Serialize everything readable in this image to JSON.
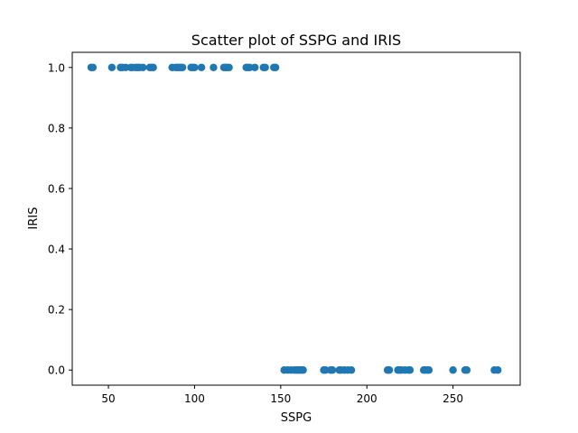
{
  "chart_data": {
    "type": "scatter",
    "title": "Scatter plot of SSPG and IRIS",
    "xlabel": "SSPG",
    "ylabel": "IRIS",
    "xlim": [
      29,
      289
    ],
    "ylim": [
      -0.05,
      1.05
    ],
    "xticks": [
      50,
      100,
      150,
      200,
      250
    ],
    "yticks": [
      0.0,
      0.2,
      0.4,
      0.6,
      0.8,
      1.0
    ],
    "xtick_labels": [
      "50",
      "100",
      "150",
      "200",
      "250"
    ],
    "ytick_labels": [
      "0.0",
      "0.2",
      "0.4",
      "0.6",
      "0.8",
      "1.0"
    ],
    "grid": false,
    "marker_color": "#1f77b4",
    "series": [
      {
        "x": [
          40,
          41,
          52,
          57,
          58,
          60,
          63,
          64,
          66,
          67,
          68,
          70,
          74,
          75,
          76,
          87,
          89,
          90,
          91,
          92,
          93,
          98,
          99,
          100,
          104,
          111,
          117,
          118,
          119,
          120,
          130,
          131,
          132,
          135,
          140,
          141,
          146,
          147,
          152,
          154,
          156,
          158,
          159,
          160,
          161,
          162,
          163,
          175,
          176,
          179,
          180,
          184,
          185,
          187,
          189,
          191,
          212,
          213,
          218,
          219,
          220,
          222,
          224,
          225,
          233,
          234,
          235,
          236,
          250,
          257,
          258,
          274,
          276
        ],
        "y": [
          1,
          1,
          1,
          1,
          1,
          1,
          1,
          1,
          1,
          1,
          1,
          1,
          1,
          1,
          1,
          1,
          1,
          1,
          1,
          1,
          1,
          1,
          1,
          1,
          1,
          1,
          1,
          1,
          1,
          1,
          1,
          1,
          1,
          1,
          1,
          1,
          1,
          1,
          0,
          0,
          0,
          0,
          0,
          0,
          0,
          0,
          0,
          0,
          0,
          0,
          0,
          0,
          0,
          0,
          0,
          0,
          0,
          0,
          0,
          0,
          0,
          0,
          0,
          0,
          0,
          0,
          0,
          0,
          0,
          0,
          0,
          0,
          0
        ]
      }
    ]
  }
}
